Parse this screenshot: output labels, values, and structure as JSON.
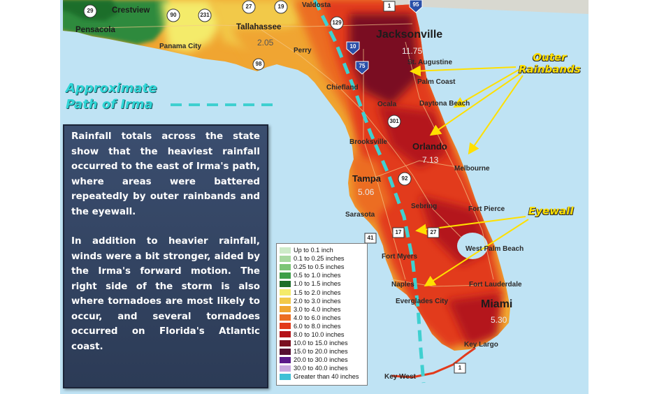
{
  "panel": {
    "paragraph1": "Rainfall totals across the state show that the heaviest rainfall occurred to the east of Irma's path, where areas were battered repeatedly by outer rainbands and the eyewall.",
    "paragraph2": "In addition to heavier rainfall, winds were a bit stronger, aided by the Irma's forward motion. The right side of the storm is also where tornadoes are most likely to occur, and several tornadoes occurred on Florida's Atlantic coast."
  },
  "annotations": {
    "path_label_line1": "Approximate",
    "path_label_line2": "Path of Irma",
    "outer_rainbands_line1": "Outer",
    "outer_rainbands_line2": "Rainbands",
    "eyewall": "Eyewall"
  },
  "legend": [
    {
      "label": "Up to 0.1 inch",
      "color": "#cdebc8"
    },
    {
      "label": "0.1 to 0.25 inches",
      "color": "#a8d9a0"
    },
    {
      "label": "0.25 to 0.5 inches",
      "color": "#7cc576"
    },
    {
      "label": "0.5 to 1.0 inches",
      "color": "#3e9f48"
    },
    {
      "label": "1.0 to 1.5 inches",
      "color": "#1e6e2a"
    },
    {
      "label": "1.5 to 2.0 inches",
      "color": "#f4eb6a"
    },
    {
      "label": "2.0 to 3.0 inches",
      "color": "#f2c94a"
    },
    {
      "label": "3.0 to 4.0 inches",
      "color": "#f0a531"
    },
    {
      "label": "4.0 to 6.0 inches",
      "color": "#ec6d22"
    },
    {
      "label": "6.0 to 8.0 inches",
      "color": "#e23a1b"
    },
    {
      "label": "8.0 to 10.0 inches",
      "color": "#b4141a"
    },
    {
      "label": "10.0 to 15.0 inches",
      "color": "#7a0f20"
    },
    {
      "label": "15.0 to 20.0 inches",
      "color": "#561032"
    },
    {
      "label": "20.0 to 30.0 inches",
      "color": "#5a1a8a"
    },
    {
      "label": "30.0 to 40.0 inches",
      "color": "#c8a9e0"
    },
    {
      "label": "Greater than 40 inches",
      "color": "#3ec0d6"
    }
  ],
  "cities": {
    "crestview": "Crestview",
    "pensacola": "Pensacola",
    "panama_city": "Panama City",
    "tallahassee": "Tallahassee",
    "perry": "Perry",
    "valdosta": "Valdosta",
    "jacksonville": "Jacksonville",
    "st_augustine": "St. Augustine",
    "palm_coast": "Palm Coast",
    "chiefland": "Chiefland",
    "ocala": "Ocala",
    "daytona_beach": "Daytona Beach",
    "brooksville": "Brooksville",
    "orlando": "Orlando",
    "melbourne": "Melbourne",
    "tampa": "Tampa",
    "sarasota": "Sarasota",
    "sebring": "Sebring",
    "fort_pierce": "Fort Pierce",
    "fort_myers": "Fort Myers",
    "west_palm_beach": "West Palm Beach",
    "naples": "Naples",
    "fort_lauderdale": "Fort Lauderdale",
    "everglades_city": "Everglades City",
    "miami": "Miami",
    "key_largo": "Key Largo",
    "key_west": "Key West"
  },
  "rain_values": {
    "tallahassee": "2.05",
    "jacksonville": "11.75",
    "orlando": "7.13",
    "tampa": "5.06",
    "miami": "5.30"
  },
  "shields": [
    "29",
    "90",
    "231",
    "27",
    "19",
    "1",
    "95",
    "129",
    "10",
    "75",
    "98",
    "301",
    "92",
    "17",
    "27",
    "41",
    "1"
  ],
  "colors": {
    "water": "#bfe3f4",
    "land_gray": "#d8d8d0",
    "path_line": "#3fd0d0",
    "arrow": "#ffe000"
  }
}
